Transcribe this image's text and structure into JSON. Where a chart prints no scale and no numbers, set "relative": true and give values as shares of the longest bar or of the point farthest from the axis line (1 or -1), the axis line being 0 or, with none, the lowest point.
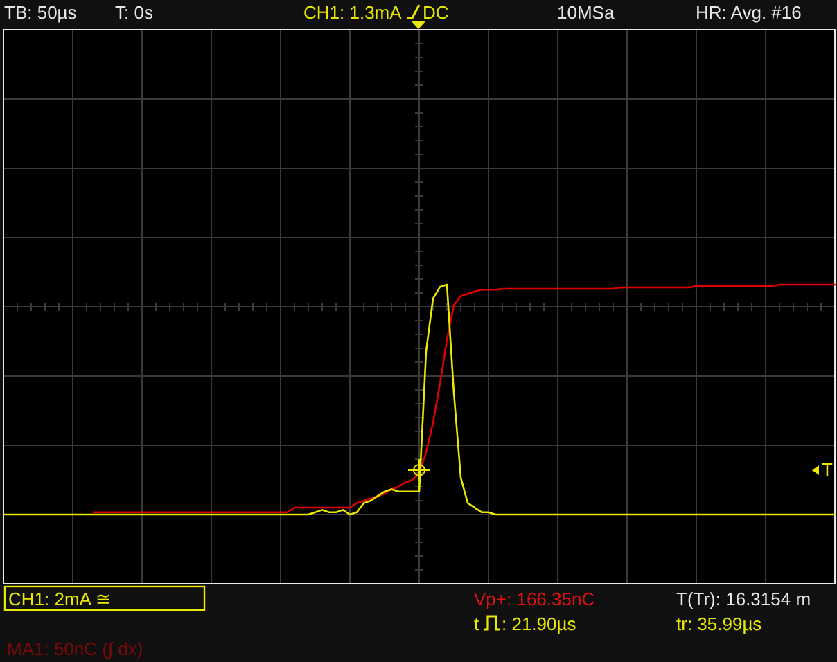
{
  "chart_data": {
    "type": "line",
    "relative": true,
    "grid": true,
    "categories": [
      null,
      null,
      null,
      null,
      null,
      null,
      null,
      null,
      null,
      null,
      null,
      null,
      null,
      null,
      null,
      null,
      null,
      null,
      null,
      null,
      null,
      null,
      null,
      null,
      null,
      null,
      null,
      null,
      null,
      null,
      null,
      null,
      null,
      null,
      null,
      null,
      null,
      null,
      null,
      null,
      null,
      null,
      null,
      null,
      null,
      null,
      null,
      null,
      null,
      null,
      null,
      null,
      null,
      null,
      null,
      null,
      null,
      null,
      null,
      null,
      null,
      null,
      null,
      null,
      null,
      null,
      null,
      null,
      null,
      null,
      null,
      null,
      null,
      null,
      null,
      null,
      null,
      null,
      null,
      null,
      null,
      null,
      null,
      null,
      null,
      null,
      null,
      null,
      null,
      null,
      null,
      null,
      null,
      null,
      null,
      null,
      null,
      null,
      null,
      null,
      null,
      null,
      null,
      null,
      null,
      null,
      null,
      null,
      null,
      null,
      null,
      null,
      null,
      null,
      null,
      null,
      null,
      null,
      null,
      null,
      null
    ],
    "series": [
      {
        "color": "#e00000",
        "values": [
          null,
          null,
          null,
          null,
          null,
          null,
          null,
          null,
          null,
          null,
          null,
          null,
          null,
          0.01,
          0.01,
          0.01,
          0.01,
          0.01,
          0.01,
          0.01,
          0.01,
          0.01,
          0.01,
          0.01,
          0.01,
          0.01,
          0.01,
          0.01,
          0.01,
          0.01,
          0.01,
          0.01,
          0.01,
          0.01,
          0.01,
          0.01,
          0.01,
          0.01,
          0.01,
          0.01,
          0.01,
          0.01,
          0.03,
          0.03,
          0.03,
          0.03,
          0.03,
          0.03,
          0.03,
          0.03,
          0.03,
          0.05,
          0.06,
          0.07,
          0.08,
          0.09,
          0.11,
          0.12,
          0.14,
          0.15,
          0.18,
          0.27,
          0.4,
          0.57,
          0.76,
          0.91,
          0.95,
          0.96,
          0.97,
          0.978,
          0.978,
          0.978,
          0.982,
          0.982,
          0.982,
          0.982,
          0.982,
          0.982,
          0.982,
          0.982,
          0.982,
          0.982,
          0.982,
          0.982,
          0.982,
          0.982,
          0.982,
          0.982,
          0.982,
          0.988,
          0.988,
          0.988,
          0.988,
          0.988,
          0.988,
          0.988,
          0.988,
          0.988,
          0.988,
          0.988,
          0.994,
          0.994,
          0.994,
          0.994,
          0.994,
          0.994,
          0.994,
          0.994,
          0.994,
          0.994,
          0.994,
          0.994,
          1,
          1,
          1,
          1,
          1,
          1,
          1,
          1,
          1
        ]
      },
      {
        "color": "#e8e800",
        "values": [
          0,
          0,
          0,
          0,
          0,
          0,
          0,
          0,
          0,
          0,
          0,
          0,
          0,
          0,
          0,
          0,
          0,
          0,
          0,
          0,
          0,
          0,
          0,
          0,
          0,
          0,
          0,
          0,
          0,
          0,
          0,
          0,
          0,
          0,
          0,
          0,
          0,
          0,
          0,
          0,
          0,
          0,
          0,
          0,
          0,
          0.01,
          0.02,
          0.01,
          0.01,
          0.02,
          0,
          0.01,
          0.05,
          0.06,
          0.08,
          0.1,
          0.11,
          0.1,
          0.1,
          0.1,
          0.1,
          0.71,
          0.94,
          0.99,
          1,
          0.53,
          0.16,
          0.05,
          0.03,
          0.01,
          0.01,
          0,
          0,
          0,
          0,
          0,
          0,
          0,
          0,
          0,
          0,
          0,
          0,
          0,
          0,
          0,
          0,
          0,
          0,
          0,
          0,
          0,
          0,
          0,
          0,
          0,
          0,
          0,
          0,
          0,
          0,
          0,
          0,
          0,
          0,
          0,
          0,
          0,
          0,
          0,
          0,
          0,
          0,
          0,
          0,
          0,
          0,
          0,
          0,
          0,
          0
        ]
      }
    ],
    "annotations": [
      "TB: 50µs",
      "T: 0s",
      "CH1: 1.3mA",
      "DC",
      "10MSa",
      "HR: Avg. #16",
      "CH1: 2mA ≅",
      "Vp+: 166.35nC",
      "T(Tr): 16.3154 m",
      "t",
      ": 21.90µs",
      "tr: 35.99µs",
      "MA1: 50nC (∫ dx)",
      "T"
    ]
  }
}
